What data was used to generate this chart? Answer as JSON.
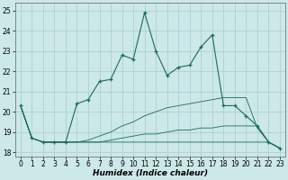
{
  "xlabel": "Humidex (Indice chaleur)",
  "xlim": [
    -0.5,
    23.5
  ],
  "ylim": [
    17.8,
    25.4
  ],
  "yticks": [
    18,
    19,
    20,
    21,
    22,
    23,
    24,
    25
  ],
  "xticks": [
    0,
    1,
    2,
    3,
    4,
    5,
    6,
    7,
    8,
    9,
    10,
    11,
    12,
    13,
    14,
    15,
    16,
    17,
    18,
    19,
    20,
    21,
    22,
    23
  ],
  "bg_color": "#cce8e8",
  "grid_color": "#a8cccc",
  "line_color": "#1a6b5a",
  "main_line": [
    20.3,
    18.7,
    18.5,
    18.5,
    18.5,
    20.4,
    20.6,
    21.5,
    21.6,
    22.8,
    22.6,
    24.9,
    23.0,
    21.8,
    22.2,
    22.3,
    23.2,
    23.8,
    20.3,
    20.3,
    19.8,
    19.3,
    18.5,
    18.2
  ],
  "line2": [
    20.3,
    18.7,
    18.5,
    18.5,
    18.5,
    18.5,
    18.6,
    18.8,
    19.0,
    19.3,
    19.5,
    19.8,
    20.0,
    20.2,
    20.3,
    20.4,
    20.5,
    20.6,
    20.7,
    20.7,
    20.7,
    19.2,
    18.5,
    18.2
  ],
  "line3": [
    20.3,
    18.7,
    18.5,
    18.5,
    18.5,
    18.5,
    18.5,
    18.5,
    18.6,
    18.7,
    18.8,
    18.9,
    18.9,
    19.0,
    19.1,
    19.1,
    19.2,
    19.2,
    19.3,
    19.3,
    19.3,
    19.3,
    18.5,
    18.2
  ],
  "line4": [
    20.3,
    18.7,
    18.5,
    18.5,
    18.5,
    18.5,
    18.5,
    18.5,
    18.5,
    18.5,
    18.5,
    18.5,
    18.5,
    18.5,
    18.5,
    18.5,
    18.5,
    18.5,
    18.5,
    18.5,
    18.5,
    18.5,
    18.5,
    18.2
  ],
  "tick_fontsize": 5.5,
  "xlabel_fontsize": 6.5
}
